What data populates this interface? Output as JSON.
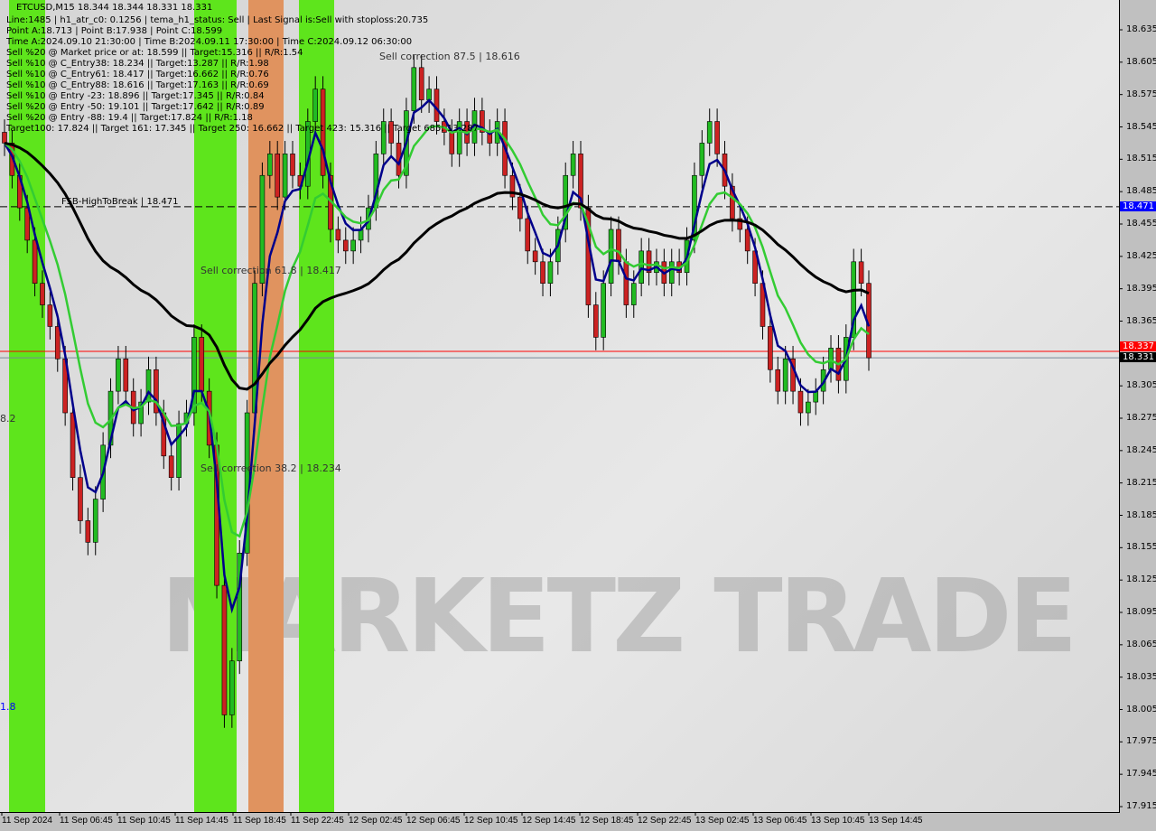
{
  "chart_data": {
    "type": "candlestick",
    "symbol_line": "ETCUSD,M15  18.344 18.344 18.331 18.331",
    "ylim": [
      17.905,
      18.655
    ],
    "y_ticks": [
      "18.635",
      "18.605",
      "18.575",
      "18.545",
      "18.515",
      "18.485",
      "18.455",
      "18.425",
      "18.395",
      "18.365",
      "18.305",
      "18.275",
      "18.245",
      "18.215",
      "18.185",
      "18.155",
      "18.125",
      "18.095",
      "18.065",
      "18.035",
      "18.005",
      "17.975",
      "17.945",
      "17.915"
    ],
    "x_ticks": [
      "11 Sep 2024",
      "11 Sep 06:45",
      "11 Sep 10:45",
      "11 Sep 14:45",
      "11 Sep 18:45",
      "11 Sep 22:45",
      "12 Sep 02:45",
      "12 Sep 06:45",
      "12 Sep 10:45",
      "12 Sep 14:45",
      "12 Sep 18:45",
      "12 Sep 22:45",
      "13 Sep 02:45",
      "13 Sep 06:45",
      "13 Sep 10:45",
      "13 Sep 14:45"
    ],
    "closes": [
      18.53,
      18.5,
      18.47,
      18.44,
      18.4,
      18.38,
      18.36,
      18.33,
      18.28,
      18.22,
      18.18,
      18.16,
      18.2,
      18.25,
      18.3,
      18.33,
      18.3,
      18.27,
      18.29,
      18.32,
      18.28,
      18.24,
      18.22,
      18.27,
      18.28,
      18.35,
      18.3,
      18.25,
      18.12,
      18.0,
      18.05,
      18.15,
      18.28,
      18.4,
      18.5,
      18.52,
      18.48,
      18.52,
      18.5,
      18.49,
      18.55,
      18.58,
      18.5,
      18.45,
      18.44,
      18.43,
      18.44,
      18.45,
      18.47,
      18.52,
      18.55,
      18.53,
      18.5,
      18.56,
      18.6,
      18.57,
      18.58,
      18.55,
      18.54,
      18.52,
      18.55,
      18.53,
      18.56,
      18.54,
      18.53,
      18.55,
      18.5,
      18.48,
      18.46,
      18.43,
      18.42,
      18.4,
      18.42,
      18.45,
      18.5,
      18.52,
      18.47,
      18.38,
      18.35,
      18.4,
      18.45,
      18.42,
      18.38,
      18.4,
      18.43,
      18.41,
      18.42,
      18.4,
      18.42,
      18.41,
      18.44,
      18.5,
      18.53,
      18.55,
      18.52,
      18.49,
      18.46,
      18.45,
      18.43,
      18.4,
      18.36,
      18.32,
      18.3,
      18.33,
      18.3,
      18.28,
      18.29,
      18.3,
      18.32,
      18.34,
      18.31,
      18.35,
      18.42,
      18.4,
      18.331
    ],
    "horizontal_lines": [
      {
        "price": 18.471,
        "style": "dashed",
        "color": "#000000"
      },
      {
        "price": 18.337,
        "color": "#ff0000"
      },
      {
        "price": 18.331,
        "color": "#778899"
      }
    ],
    "price_tags": [
      {
        "value": "18.471",
        "price": 18.471,
        "bg": "#0000ff",
        "fg": "#ffffff"
      },
      {
        "value": "18.337",
        "price": 18.337,
        "bg": "#ff0000",
        "fg": "#ffffff"
      },
      {
        "value": "18.331",
        "price": 18.331,
        "bg": "#000000",
        "fg": "#ffffff"
      }
    ],
    "ma_colors": {
      "fast": "#00008b",
      "mid": "#33cc33",
      "slow": "#000000"
    },
    "zone_colors": {
      "green": "#5ee51c",
      "orange": "#e0935f"
    }
  },
  "info_lines": [
    "Line:1485 | h1_atr_c0: 0.1256 | tema_h1_status: Sell | Last Signal is:Sell with stoploss:20.735",
    "Point A:18.713 | Point B:17.938 | Point C:18.599",
    "Time A:2024.09.10 21:30:00 | Time B:2024.09.11 17:30:00 | Time C:2024.09.12 06:30:00",
    "Sell %20 @ Market price or at: 18.599 || Target:15.316 || R/R:1.54",
    "Sell %10 @ C_Entry38: 18.234 || Target:13.287 || R/R:1.98",
    "Sell %10 @ C_Entry61: 18.417 || Target:16.662 || R/R:0.76",
    "Sell %10 @ C_Entry88: 18.616 || Target:17.163 || R/R:0.69",
    "Sell %10 @ Entry -23: 18.896 || Target:17.345 || R/R:0.84",
    "Sell %20 @ Entry -50: 19.101 || Target:17.642 || R/R:0.89",
    "Sell %20 @ Entry -88: 19.4 || Target:17.824 || R/R:1.18",
    "Target100: 17.824 || Target 161: 17.345 || Target 250: 16.662 || Target 423: 15.316 || Target 685: 13.287"
  ],
  "labels": {
    "corr875": "Sell correction 87.5 | 18.616",
    "fsb": "FSB-HighToBreak | 18.471",
    "corr618": "Sell correction 61.8 | 18.417",
    "corr382": "Sell correction 38.2 | 18.234",
    "left1": "8.2",
    "left2": "1.8"
  },
  "watermark": "MARKETZ TRADE"
}
